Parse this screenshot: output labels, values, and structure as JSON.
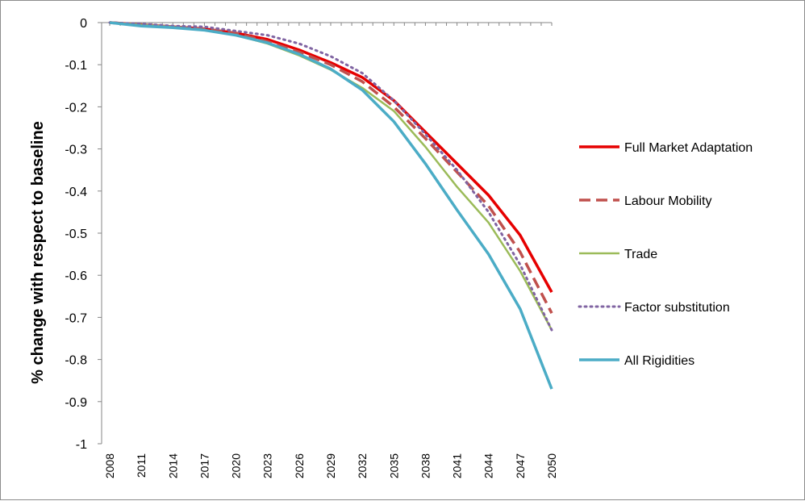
{
  "chart_data": {
    "type": "line",
    "title": "",
    "xlabel": "",
    "ylabel": "% change with respect to baseline",
    "ylim": [
      -1,
      0
    ],
    "yticks": [
      "0",
      "-0.1",
      "-0.2",
      "-0.3",
      "-0.4",
      "-0.5",
      "-0.6",
      "-0.7",
      "-0.8",
      "-0.9",
      "-1"
    ],
    "yticks_values": [
      0,
      -0.1,
      -0.2,
      -0.3,
      -0.4,
      -0.5,
      -0.6,
      -0.7,
      -0.8,
      -0.9,
      -1
    ],
    "xticks": [
      "2008",
      "2011",
      "2014",
      "2017",
      "2020",
      "2023",
      "2026",
      "2029",
      "2032",
      "2035",
      "2038",
      "2041",
      "2044",
      "2047",
      "2050"
    ],
    "x": [
      "2008",
      "2011",
      "2014",
      "2017",
      "2020",
      "2023",
      "2026",
      "2029",
      "2032",
      "2035",
      "2038",
      "2041",
      "2044",
      "2047",
      "2050"
    ],
    "grid": false,
    "legend_position": "right",
    "series": [
      {
        "name": "Full Market Adaptation",
        "color": "#e60000",
        "style": "solid",
        "values": [
          0,
          -0.005,
          -0.01,
          -0.015,
          -0.025,
          -0.04,
          -0.065,
          -0.095,
          -0.13,
          -0.185,
          -0.26,
          -0.335,
          -0.41,
          -0.505,
          -0.64
        ]
      },
      {
        "name": "Labour Mobility",
        "color": "#c0504d",
        "style": "dashed",
        "values": [
          0,
          -0.005,
          -0.01,
          -0.015,
          -0.025,
          -0.045,
          -0.07,
          -0.1,
          -0.14,
          -0.2,
          -0.275,
          -0.355,
          -0.435,
          -0.545,
          -0.69
        ]
      },
      {
        "name": "Trade",
        "color": "#9bbb59",
        "style": "solid",
        "values": [
          0,
          -0.005,
          -0.01,
          -0.018,
          -0.03,
          -0.05,
          -0.078,
          -0.112,
          -0.155,
          -0.21,
          -0.295,
          -0.39,
          -0.475,
          -0.59,
          -0.73
        ]
      },
      {
        "name": "Factor substitution",
        "color": "#8064a2",
        "style": "dotted",
        "values": [
          0,
          -0.003,
          -0.008,
          -0.01,
          -0.02,
          -0.03,
          -0.05,
          -0.08,
          -0.12,
          -0.185,
          -0.265,
          -0.35,
          -0.45,
          -0.575,
          -0.73
        ]
      },
      {
        "name": "All Rigidities",
        "color": "#4bacc6",
        "style": "solid",
        "values": [
          0,
          -0.008,
          -0.012,
          -0.018,
          -0.03,
          -0.048,
          -0.075,
          -0.11,
          -0.16,
          -0.235,
          -0.335,
          -0.445,
          -0.55,
          -0.68,
          -0.87
        ]
      }
    ]
  }
}
